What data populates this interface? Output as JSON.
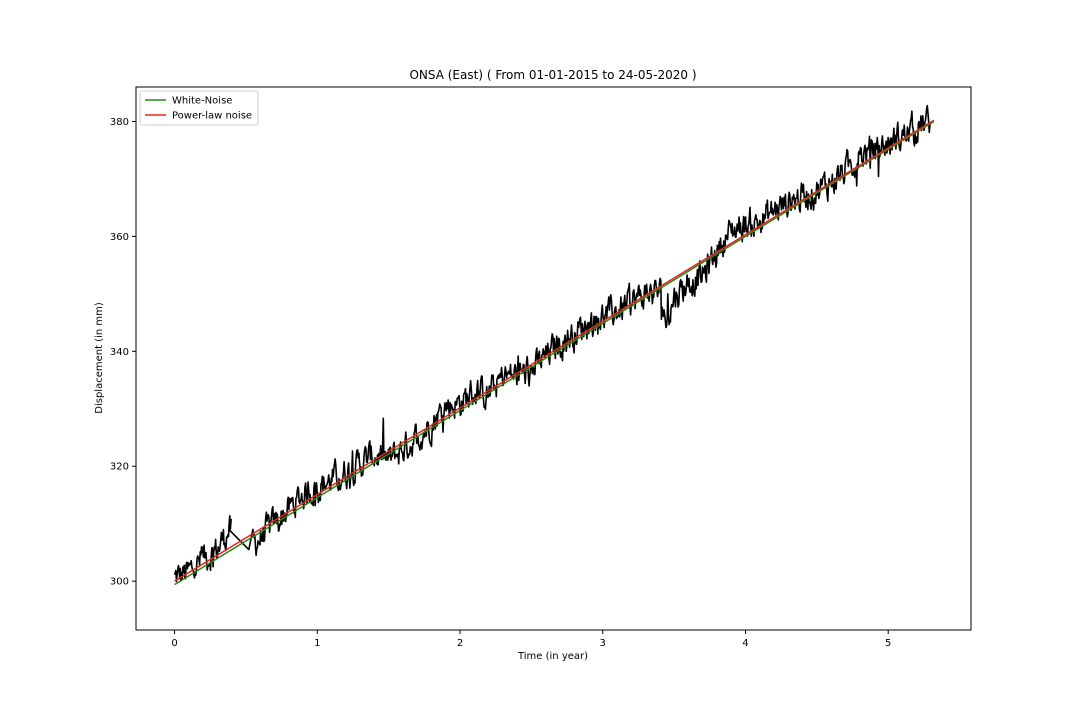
{
  "chart_data": {
    "type": "line",
    "title": "ONSA (East) ( From 01-01-2015 to 24-05-2020 )",
    "xlabel": "Time (in year)",
    "ylabel": "Displacement (in mm)",
    "xlim": [
      -0.27,
      5.58
    ],
    "ylim": [
      291.5,
      386
    ],
    "xticks": [
      0,
      1,
      2,
      3,
      4,
      5
    ],
    "yticks": [
      300,
      320,
      340,
      360,
      380
    ],
    "grid": false,
    "legend_position": "top-left",
    "colors": {
      "observations": "#000000",
      "white_noise": "#228b22",
      "power_law": "#e8261a"
    },
    "series": [
      {
        "name": "White-Noise",
        "x": [
          0,
          5.32
        ],
        "y": [
          299.4,
          380.0
        ]
      },
      {
        "name": "Power-law noise",
        "x": [
          0,
          5.32
        ],
        "y": [
          300.0,
          380.2
        ]
      },
      {
        "x": [
          0.0,
          0.1,
          0.2,
          0.3,
          0.38,
          0.45,
          0.52,
          0.55,
          0.6,
          0.7,
          0.8,
          0.9,
          1.0,
          1.1,
          1.2,
          1.3,
          1.4,
          1.5,
          1.6,
          1.7,
          1.8,
          1.9,
          2.0,
          2.1,
          2.2,
          2.3,
          2.4,
          2.5,
          2.6,
          2.7,
          2.8,
          2.9,
          3.0,
          3.1,
          3.2,
          3.3,
          3.4,
          3.45,
          3.5,
          3.6,
          3.7,
          3.8,
          3.9,
          4.0,
          4.1,
          4.2,
          4.3,
          4.4,
          4.5,
          4.6,
          4.7,
          4.8,
          4.9,
          5.0,
          5.1,
          5.2,
          5.3
        ],
        "y": [
          300.5,
          301.5,
          304.0,
          305.5,
          309.0,
          307.0,
          305.5,
          306.5,
          307.5,
          310.0,
          312.5,
          315.0,
          316.5,
          317.5,
          319.0,
          320.5,
          322.0,
          321.0,
          323.0,
          325.0,
          327.5,
          330.5,
          331.0,
          333.0,
          332.5,
          335.5,
          336.0,
          336.5,
          339.0,
          341.5,
          343.0,
          345.0,
          346.0,
          347.0,
          348.5,
          350.0,
          350.5,
          344.5,
          349.5,
          352.0,
          353.0,
          357.5,
          361.0,
          362.0,
          362.5,
          364.5,
          366.0,
          367.0,
          368.0,
          369.5,
          371.5,
          374.0,
          375.0,
          376.0,
          377.5,
          379.0,
          380.0
        ]
      }
    ]
  }
}
